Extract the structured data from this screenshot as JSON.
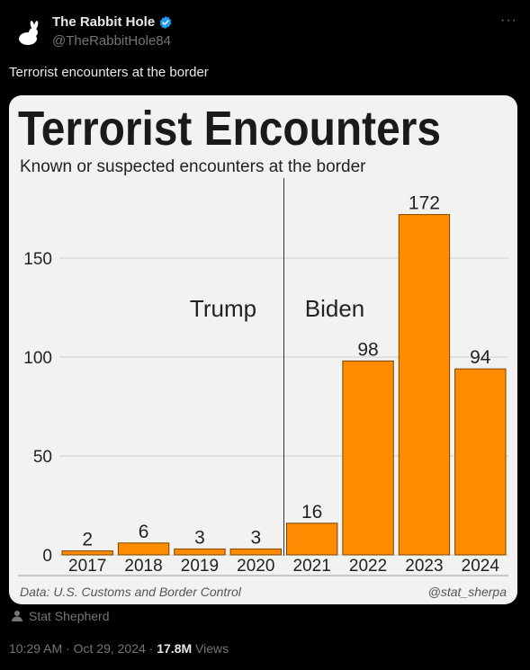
{
  "post": {
    "author_name": "The Rabbit Hole",
    "author_handle": "@TheRabbitHole84",
    "text": "Terrorist encounters at the border",
    "credit": "Stat Shepherd",
    "time": "10:29 AM",
    "date": "Oct 29, 2024",
    "separator": "·",
    "views_count": "17.8M",
    "views_label": "Views",
    "more_glyph": "···",
    "icons": {
      "avatar": "rabbit-icon",
      "verified": "verified-badge-icon",
      "credit": "person-icon",
      "more": "more-icon"
    },
    "colors": {
      "verified": "#1d9bf0",
      "bar": "#ff8c00"
    }
  },
  "chart_data": {
    "type": "bar",
    "title": "Terrorist Encounters",
    "subtitle": "Known or suspected encounters at the border",
    "categories": [
      "2017",
      "2018",
      "2019",
      "2020",
      "2021",
      "2022",
      "2023",
      "2024"
    ],
    "values": [
      2,
      6,
      3,
      3,
      16,
      98,
      172,
      94
    ],
    "ylim": [
      0,
      180
    ],
    "yticks": [
      0,
      50,
      100,
      150
    ],
    "grid": true,
    "annotations": [
      {
        "text": "Trump"
      },
      {
        "text": "Biden"
      }
    ],
    "divider_after": "2020",
    "source": "Data: U.S. Customs and Border Control",
    "watermark": "@stat_sherpa"
  }
}
